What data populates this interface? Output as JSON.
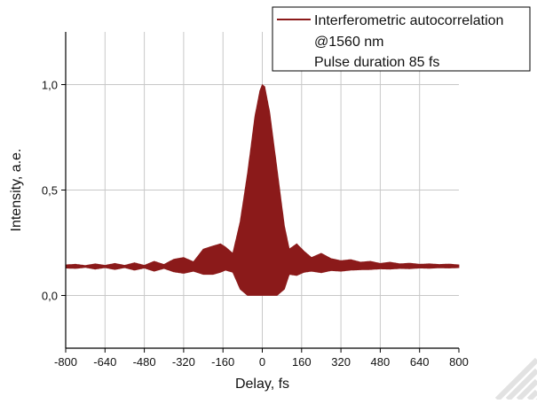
{
  "chart_data": {
    "type": "line",
    "title": "",
    "xlabel": "Delay, fs",
    "ylabel": "Intensity, a.e.",
    "xlim": [
      -800,
      800
    ],
    "ylim": [
      -0.25,
      1.25
    ],
    "x_ticks": [
      -800,
      -640,
      -480,
      -320,
      -160,
      0,
      160,
      320,
      480,
      640,
      800
    ],
    "x_tick_labels": [
      "-800",
      "-640",
      "-480",
      "-320",
      "-160",
      "0",
      "160",
      "320",
      "480",
      "640",
      "800"
    ],
    "y_ticks": [
      0.0,
      0.5,
      1.0
    ],
    "y_tick_labels": [
      "0,0",
      "0,5",
      "1,0"
    ],
    "grid": true,
    "legend": {
      "placement": "top-right",
      "lines": [
        "Interferometric autocorrelation",
        "@1560 nm",
        "Pulse duration 85 fs"
      ]
    },
    "series": [
      {
        "name": "Interferometric autocorrelation",
        "color": "#8b1a1a",
        "fill": "band",
        "background_level": 0.14,
        "peak_center": 0,
        "peak_upper": 1.0,
        "peak_lower": 0.0,
        "envelope_upper": [
          [
            -800,
            0.145
          ],
          [
            -760,
            0.148
          ],
          [
            -720,
            0.142
          ],
          [
            -680,
            0.15
          ],
          [
            -640,
            0.143
          ],
          [
            -600,
            0.152
          ],
          [
            -560,
            0.143
          ],
          [
            -520,
            0.155
          ],
          [
            -480,
            0.143
          ],
          [
            -440,
            0.162
          ],
          [
            -400,
            0.147
          ],
          [
            -360,
            0.172
          ],
          [
            -320,
            0.18
          ],
          [
            -280,
            0.16
          ],
          [
            -240,
            0.22
          ],
          [
            -200,
            0.235
          ],
          [
            -170,
            0.245
          ],
          [
            -150,
            0.23
          ],
          [
            -120,
            0.2
          ],
          [
            -90,
            0.35
          ],
          [
            -60,
            0.58
          ],
          [
            -30,
            0.85
          ],
          [
            -10,
            0.97
          ],
          [
            0,
            1.0
          ],
          [
            10,
            0.99
          ],
          [
            30,
            0.87
          ],
          [
            60,
            0.6
          ],
          [
            90,
            0.33
          ],
          [
            110,
            0.22
          ],
          [
            140,
            0.245
          ],
          [
            170,
            0.21
          ],
          [
            200,
            0.18
          ],
          [
            240,
            0.2
          ],
          [
            280,
            0.175
          ],
          [
            320,
            0.165
          ],
          [
            360,
            0.17
          ],
          [
            400,
            0.158
          ],
          [
            440,
            0.162
          ],
          [
            480,
            0.152
          ],
          [
            520,
            0.158
          ],
          [
            560,
            0.15
          ],
          [
            600,
            0.153
          ],
          [
            640,
            0.148
          ],
          [
            680,
            0.15
          ],
          [
            720,
            0.147
          ],
          [
            760,
            0.149
          ],
          [
            800,
            0.145
          ]
        ],
        "envelope_lower": [
          [
            -800,
            0.13
          ],
          [
            -760,
            0.128
          ],
          [
            -720,
            0.133
          ],
          [
            -680,
            0.125
          ],
          [
            -640,
            0.132
          ],
          [
            -600,
            0.123
          ],
          [
            -560,
            0.132
          ],
          [
            -520,
            0.12
          ],
          [
            -480,
            0.13
          ],
          [
            -440,
            0.115
          ],
          [
            -400,
            0.128
          ],
          [
            -360,
            0.112
          ],
          [
            -320,
            0.105
          ],
          [
            -280,
            0.115
          ],
          [
            -240,
            0.1
          ],
          [
            -200,
            0.1
          ],
          [
            -170,
            0.11
          ],
          [
            -150,
            0.12
          ],
          [
            -120,
            0.11
          ],
          [
            -90,
            0.03
          ],
          [
            -60,
            0.0
          ],
          [
            -30,
            0.0
          ],
          [
            0,
            0.0
          ],
          [
            30,
            0.0
          ],
          [
            60,
            0.0
          ],
          [
            90,
            0.03
          ],
          [
            110,
            0.1
          ],
          [
            140,
            0.095
          ],
          [
            170,
            0.11
          ],
          [
            200,
            0.115
          ],
          [
            240,
            0.108
          ],
          [
            280,
            0.118
          ],
          [
            320,
            0.115
          ],
          [
            360,
            0.12
          ],
          [
            400,
            0.122
          ],
          [
            440,
            0.123
          ],
          [
            480,
            0.126
          ],
          [
            520,
            0.125
          ],
          [
            560,
            0.128
          ],
          [
            600,
            0.127
          ],
          [
            640,
            0.13
          ],
          [
            680,
            0.129
          ],
          [
            720,
            0.131
          ],
          [
            760,
            0.13
          ],
          [
            800,
            0.132
          ]
        ]
      }
    ]
  }
}
